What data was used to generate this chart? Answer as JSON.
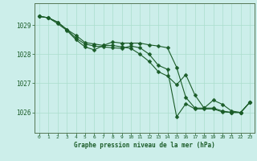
{
  "bg_color": "#cceeea",
  "grid_color": "#aaddcc",
  "line_color": "#1a5c28",
  "marker_color": "#1a5c28",
  "xlabel": "Graphe pression niveau de la mer (hPa)",
  "xlabel_color": "#1a5c28",
  "tick_color": "#1a5c28",
  "spine_color": "#557755",
  "ylim": [
    1025.3,
    1029.75
  ],
  "xlim": [
    -0.5,
    23.5
  ],
  "yticks": [
    1026,
    1027,
    1028,
    1029
  ],
  "xticks": [
    0,
    1,
    2,
    3,
    4,
    5,
    6,
    7,
    8,
    9,
    10,
    11,
    12,
    13,
    14,
    15,
    16,
    17,
    18,
    19,
    20,
    21,
    22,
    23
  ],
  "series1": [
    1029.3,
    1029.25,
    1029.1,
    1028.85,
    1028.65,
    1028.4,
    1028.35,
    1028.3,
    1028.3,
    1028.25,
    1028.2,
    1028.0,
    1027.75,
    1027.4,
    1027.25,
    1026.95,
    1027.3,
    1026.6,
    1026.15,
    1026.15,
    1026.05,
    1026.0,
    1026.0,
    1026.35
  ],
  "series2": [
    1029.3,
    1029.25,
    1029.1,
    1028.85,
    1028.55,
    1028.35,
    1028.28,
    1028.25,
    1028.22,
    1028.2,
    1028.28,
    1028.22,
    1028.0,
    1027.62,
    1027.48,
    1025.85,
    1026.3,
    1026.12,
    1026.12,
    1026.12,
    1026.02,
    1026.0,
    1026.0,
    1026.35
  ],
  "series3": [
    1029.3,
    1029.25,
    1029.05,
    1028.82,
    1028.5,
    1028.25,
    1028.15,
    1028.3,
    1028.42,
    1028.38,
    1028.38,
    1028.38,
    1028.32,
    1028.28,
    1028.22,
    1027.55,
    1026.52,
    1026.15,
    1026.15,
    1026.42,
    1026.28,
    1026.05,
    1026.0,
    1026.35
  ]
}
